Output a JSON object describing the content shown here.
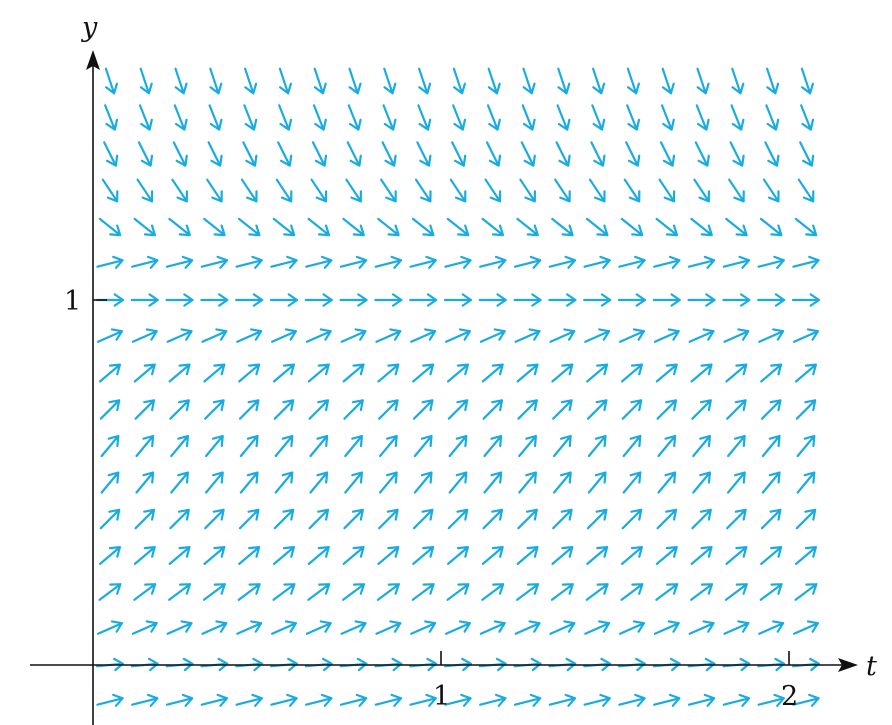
{
  "chart_data": {
    "type": "direction_field",
    "title": "",
    "xlabel": "t",
    "ylabel": "y",
    "x_ticks": [
      1,
      2
    ],
    "x_tick_labels": [
      "1",
      "2"
    ],
    "y_ticks": [
      1
    ],
    "y_tick_labels": [
      "1"
    ],
    "xlim": [
      0,
      2.1
    ],
    "ylim": [
      -0.1,
      1.65
    ],
    "grid": false,
    "legend": "none",
    "arrow_color": "#1aace0",
    "axis_color": "#111111",
    "field": {
      "t_values": [
        0,
        0.1,
        0.2,
        0.3,
        0.4,
        0.5,
        0.6,
        0.7,
        0.8,
        0.9,
        1.0,
        1.1,
        1.2,
        1.3,
        1.4,
        1.5,
        1.6,
        1.7,
        1.8,
        1.9,
        2.0
      ],
      "y_values": [
        1.6,
        1.5,
        1.4,
        1.3,
        1.2,
        1.1,
        1.0,
        0.9,
        0.8,
        0.7,
        0.6,
        0.5,
        0.4,
        0.3,
        0.2,
        0.1,
        0.0,
        -0.1
      ],
      "slopes": [
        -3.0,
        -2.5,
        -2.0,
        -1.5,
        -0.8,
        0.25,
        0.0,
        0.45,
        0.85,
        1.0,
        1.2,
        1.2,
        1.0,
        0.85,
        0.75,
        0.45,
        0.1,
        0.25
      ]
    }
  }
}
